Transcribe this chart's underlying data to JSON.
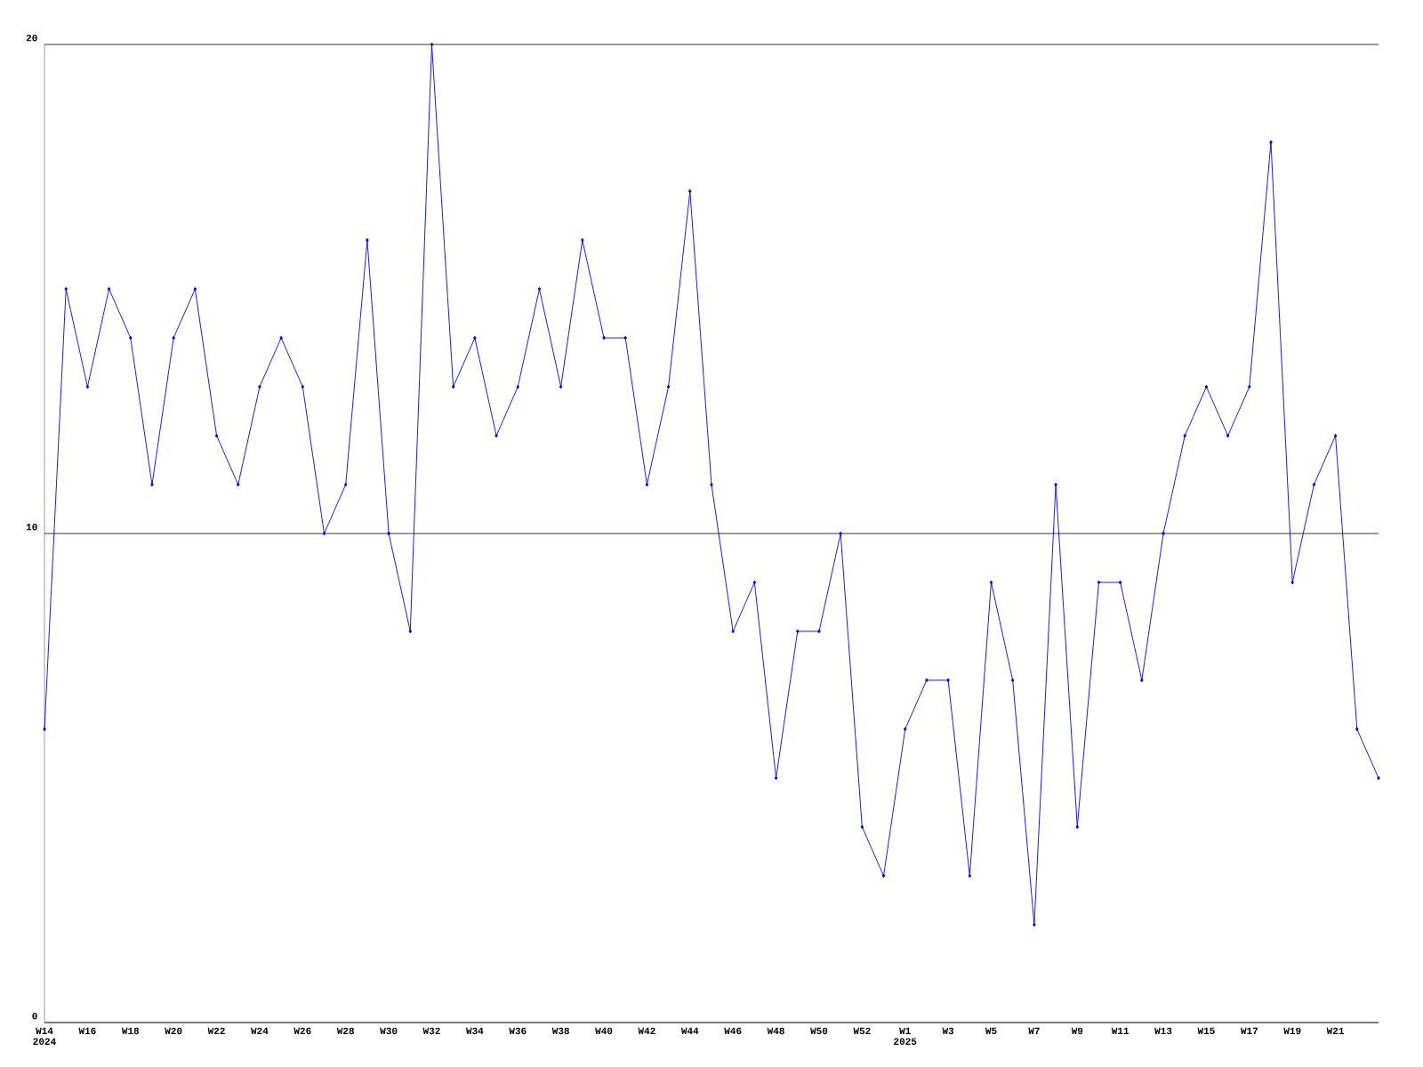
{
  "chart_data": {
    "type": "line",
    "categories": [
      "W14 2024",
      null,
      "W16",
      null,
      "W18",
      null,
      "W20",
      null,
      "W22",
      null,
      "W24",
      null,
      "W26",
      null,
      "W28",
      null,
      "W30",
      null,
      "W32",
      null,
      "W34",
      null,
      "W36",
      null,
      "W38",
      null,
      "W40",
      null,
      "W42",
      null,
      "W44",
      null,
      "W46",
      null,
      "W48",
      null,
      "W50",
      null,
      "W52",
      null,
      "W1 2025",
      null,
      "W3",
      null,
      "W5",
      null,
      "W7",
      null,
      "W9",
      null,
      "W11",
      null,
      "W13",
      null,
      "W15",
      null,
      "W17",
      null,
      "W19",
      null,
      "W21",
      null,
      null
    ],
    "values": [
      6,
      15,
      13,
      15,
      14,
      11,
      14,
      15,
      12,
      11,
      13,
      14,
      13,
      10,
      11,
      16,
      10,
      8,
      20,
      13,
      14,
      12,
      13,
      15,
      13,
      16,
      14,
      14,
      11,
      13,
      17,
      11,
      8,
      9,
      5,
      8,
      8,
      10,
      4,
      3,
      6,
      7,
      7,
      3,
      9,
      7,
      2,
      11,
      4,
      9,
      9,
      7,
      10,
      12,
      13,
      12,
      13,
      18,
      9,
      11,
      12,
      6,
      5
    ],
    "color": "#0000ff",
    "ylim": [
      0,
      20
    ],
    "yticks": [
      0,
      10,
      20
    ],
    "grid": "y",
    "marker": "diamond",
    "line_style": "solid"
  }
}
